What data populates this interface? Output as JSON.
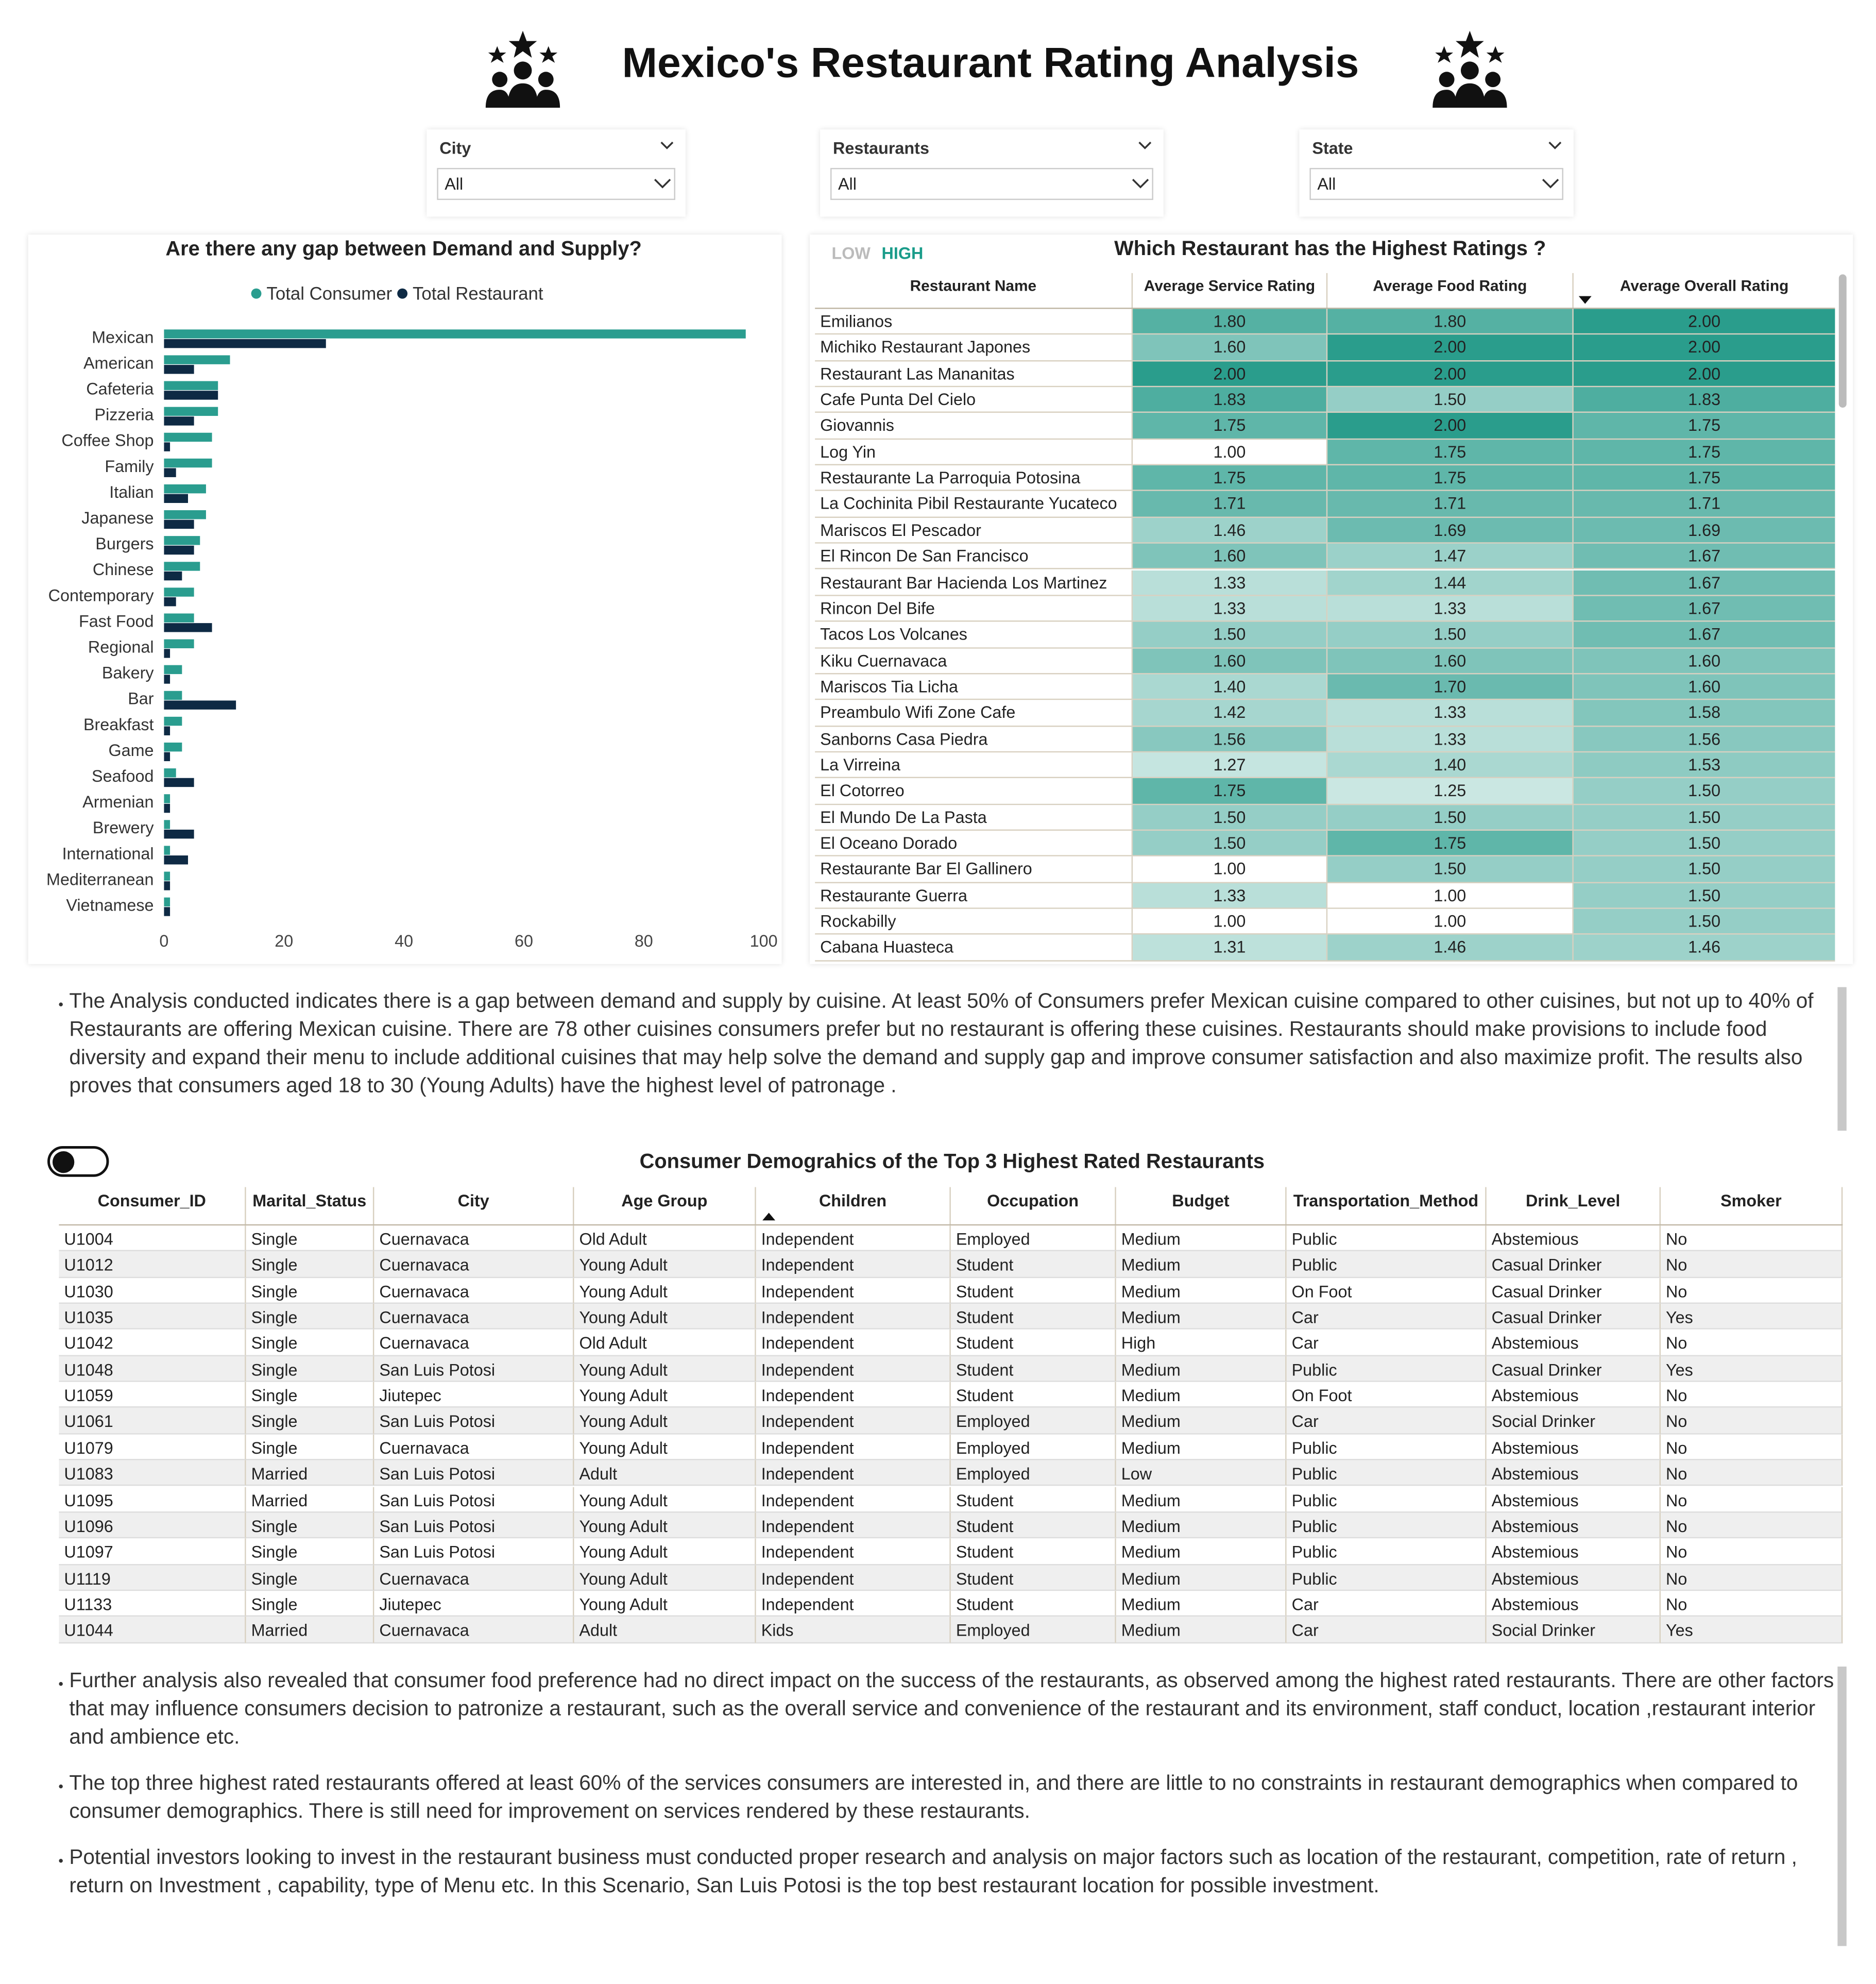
{
  "header": {
    "title": "Mexico's Restaurant Rating Analysis"
  },
  "filters": [
    {
      "label": "City",
      "value": "All"
    },
    {
      "label": "Restaurants",
      "value": "All"
    },
    {
      "label": "State",
      "value": "All"
    }
  ],
  "chart_data": {
    "type": "bar",
    "orientation": "horizontal",
    "title": "Are there any gap between Demand and Supply?",
    "categories": [
      "Mexican",
      "American",
      "Cafeteria",
      "Pizzeria",
      "Coffee Shop",
      "Family",
      "Italian",
      "Japanese",
      "Burgers",
      "Chinese",
      "Contemporary",
      "Fast Food",
      "Regional",
      "Bakery",
      "Bar",
      "Breakfast",
      "Game",
      "Seafood",
      "Armenian",
      "Brewery",
      "International",
      "Mediterranean",
      "Vietnamese"
    ],
    "series": [
      {
        "name": "Total Consumer",
        "color": "#2a9d8f",
        "values": [
          97,
          11,
          9,
          9,
          8,
          8,
          7,
          7,
          6,
          6,
          5,
          5,
          5,
          3,
          3,
          3,
          3,
          2,
          1,
          1,
          1,
          1,
          1
        ]
      },
      {
        "name": "Total Restaurant",
        "color": "#0e2a44",
        "values": [
          27,
          5,
          9,
          5,
          1,
          2,
          4,
          5,
          5,
          3,
          2,
          8,
          1,
          1,
          12,
          1,
          1,
          5,
          1,
          5,
          4,
          1,
          1
        ]
      }
    ],
    "xlim": [
      0,
      100
    ],
    "xticks": [
      0,
      20,
      40,
      60,
      80,
      100
    ],
    "grid": false,
    "legend": "top"
  },
  "ratings": {
    "legend": [
      "LOW",
      "HIGH"
    ],
    "title": "Which Restaurant has the Highest Ratings ?",
    "columns": [
      "Restaurant Name",
      "Average Service Rating",
      "Average Food Rating",
      "Average Overall Rating"
    ],
    "rows": [
      [
        "Emilianos",
        "1.80",
        "1.80",
        "2.00"
      ],
      [
        "Michiko Restaurant Japones",
        "1.60",
        "2.00",
        "2.00"
      ],
      [
        "Restaurant Las Mananitas",
        "2.00",
        "2.00",
        "2.00"
      ],
      [
        "Cafe Punta Del Cielo",
        "1.83",
        "1.50",
        "1.83"
      ],
      [
        "Giovannis",
        "1.75",
        "2.00",
        "1.75"
      ],
      [
        "Log Yin",
        "1.00",
        "1.75",
        "1.75"
      ],
      [
        "Restaurante La Parroquia Potosina",
        "1.75",
        "1.75",
        "1.75"
      ],
      [
        "La Cochinita Pibil Restaurante Yucateco",
        "1.71",
        "1.71",
        "1.71"
      ],
      [
        "Mariscos El Pescador",
        "1.46",
        "1.69",
        "1.69"
      ],
      [
        "El Rincon De San Francisco",
        "1.60",
        "1.47",
        "1.67"
      ],
      [
        "Restaurant Bar Hacienda Los Martinez",
        "1.33",
        "1.44",
        "1.67"
      ],
      [
        "Rincon Del Bife",
        "1.33",
        "1.33",
        "1.67"
      ],
      [
        "Tacos Los Volcanes",
        "1.50",
        "1.50",
        "1.67"
      ],
      [
        "Kiku Cuernavaca",
        "1.60",
        "1.60",
        "1.60"
      ],
      [
        "Mariscos Tia Licha",
        "1.40",
        "1.70",
        "1.60"
      ],
      [
        "Preambulo Wifi Zone Cafe",
        "1.42",
        "1.33",
        "1.58"
      ],
      [
        "Sanborns Casa Piedra",
        "1.56",
        "1.33",
        "1.56"
      ],
      [
        "La Virreina",
        "1.27",
        "1.40",
        "1.53"
      ],
      [
        "El Cotorreo",
        "1.75",
        "1.25",
        "1.50"
      ],
      [
        "El Mundo De La Pasta",
        "1.50",
        "1.50",
        "1.50"
      ],
      [
        "El Oceano Dorado",
        "1.50",
        "1.75",
        "1.50"
      ],
      [
        "Restaurante Bar El Gallinero",
        "1.00",
        "1.50",
        "1.50"
      ],
      [
        "Restaurante Guerra",
        "1.33",
        "1.00",
        "1.50"
      ],
      [
        "Rockabilly",
        "1.00",
        "1.00",
        "1.50"
      ],
      [
        "Cabana Huasteca",
        "1.31",
        "1.46",
        "1.46"
      ]
    ]
  },
  "notes": [
    "The Analysis conducted  indicates  there is a gap between demand and supply by cuisine. At least 50% of Consumers prefer Mexican cuisine compared to other cuisines, but not up to  40% of Restaurants  are offering Mexican cuisine. There are 78 other cuisines consumers prefer but no restaurant is offering these cuisines. Restaurants should make provisions to include food diversity and expand their menu to include additional cuisines that may  help solve the demand and supply gap and improve consumer satisfaction and also  maximize profit. The results also proves that consumers aged 18 to 30 (Young Adults)  have  the highest level of patronage .",
    "Further analysis also revealed  that consumer food preference had no direct impact on the success of the restaurants, as observed among the highest rated restaurants. There are other factors that may influence consumers decision to patronize a restaurant, such as the overall service and convenience of the restaurant and its environment, staff conduct, location ,restaurant interior and ambience etc.",
    "The top three  highest rated restaurants offered at least 60% of  the services consumers are interested in, and there are little to no constraints in restaurant demographics when compared to consumer demographics. There is still  need for improvement on services rendered by these restaurants.",
    "Potential investors looking to invest in the  restaurant business must conducted proper research and analysis on major factors such as location of the restaurant, competition, rate of return , return on Investment , capability, type of Menu etc. In this Scenario, San Luis Potosi is the top best restaurant location for possible investment."
  ],
  "demographics": {
    "title": "Consumer Demograhics of the Top 3 Highest Rated Restaurants",
    "columns": [
      "Consumer_ID",
      "Marital_Status",
      "City",
      "Age Group",
      "Children",
      "Occupation",
      "Budget",
      "Transportation_Method",
      "Drink_Level",
      "Smoker"
    ],
    "rows": [
      [
        "U1004",
        "Single",
        "Cuernavaca",
        "Old Adult",
        "Independent",
        "Employed",
        "Medium",
        "Public",
        "Abstemious",
        "No"
      ],
      [
        "U1012",
        "Single",
        "Cuernavaca",
        "Young Adult",
        "Independent",
        "Student",
        "Medium",
        "Public",
        "Casual Drinker",
        "No"
      ],
      [
        "U1030",
        "Single",
        "Cuernavaca",
        "Young Adult",
        "Independent",
        "Student",
        "Medium",
        "On Foot",
        "Casual Drinker",
        "No"
      ],
      [
        "U1035",
        "Single",
        "Cuernavaca",
        "Young Adult",
        "Independent",
        "Student",
        "Medium",
        "Car",
        "Casual Drinker",
        "Yes"
      ],
      [
        "U1042",
        "Single",
        "Cuernavaca",
        "Old Adult",
        "Independent",
        "Student",
        "High",
        "Car",
        "Abstemious",
        "No"
      ],
      [
        "U1048",
        "Single",
        "San Luis Potosi",
        "Young Adult",
        "Independent",
        "Student",
        "Medium",
        "Public",
        "Casual Drinker",
        "Yes"
      ],
      [
        "U1059",
        "Single",
        "Jiutepec",
        "Young Adult",
        "Independent",
        "Student",
        "Medium",
        "On Foot",
        "Abstemious",
        "No"
      ],
      [
        "U1061",
        "Single",
        "San Luis Potosi",
        "Young Adult",
        "Independent",
        "Employed",
        "Medium",
        "Car",
        "Social Drinker",
        "No"
      ],
      [
        "U1079",
        "Single",
        "Cuernavaca",
        "Young Adult",
        "Independent",
        "Employed",
        "Medium",
        "Public",
        "Abstemious",
        "No"
      ],
      [
        "U1083",
        "Married",
        "San Luis Potosi",
        "Adult",
        "Independent",
        "Employed",
        "Low",
        "Public",
        "Abstemious",
        "No"
      ],
      [
        "U1095",
        "Married",
        "San Luis Potosi",
        "Young Adult",
        "Independent",
        "Student",
        "Medium",
        "Public",
        "Abstemious",
        "No"
      ],
      [
        "U1096",
        "Single",
        "San Luis Potosi",
        "Young Adult",
        "Independent",
        "Student",
        "Medium",
        "Public",
        "Abstemious",
        "No"
      ],
      [
        "U1097",
        "Single",
        "San Luis Potosi",
        "Young Adult",
        "Independent",
        "Student",
        "Medium",
        "Public",
        "Abstemious",
        "No"
      ],
      [
        "U1119",
        "Single",
        "Cuernavaca",
        "Young Adult",
        "Independent",
        "Student",
        "Medium",
        "Public",
        "Abstemious",
        "No"
      ],
      [
        "U1133",
        "Single",
        "Jiutepec",
        "Young Adult",
        "Independent",
        "Student",
        "Medium",
        "Car",
        "Abstemious",
        "No"
      ],
      [
        "U1044",
        "Married",
        "Cuernavaca",
        "Adult",
        "Kids",
        "Employed",
        "Medium",
        "Car",
        "Social Drinker",
        "Yes"
      ]
    ]
  }
}
